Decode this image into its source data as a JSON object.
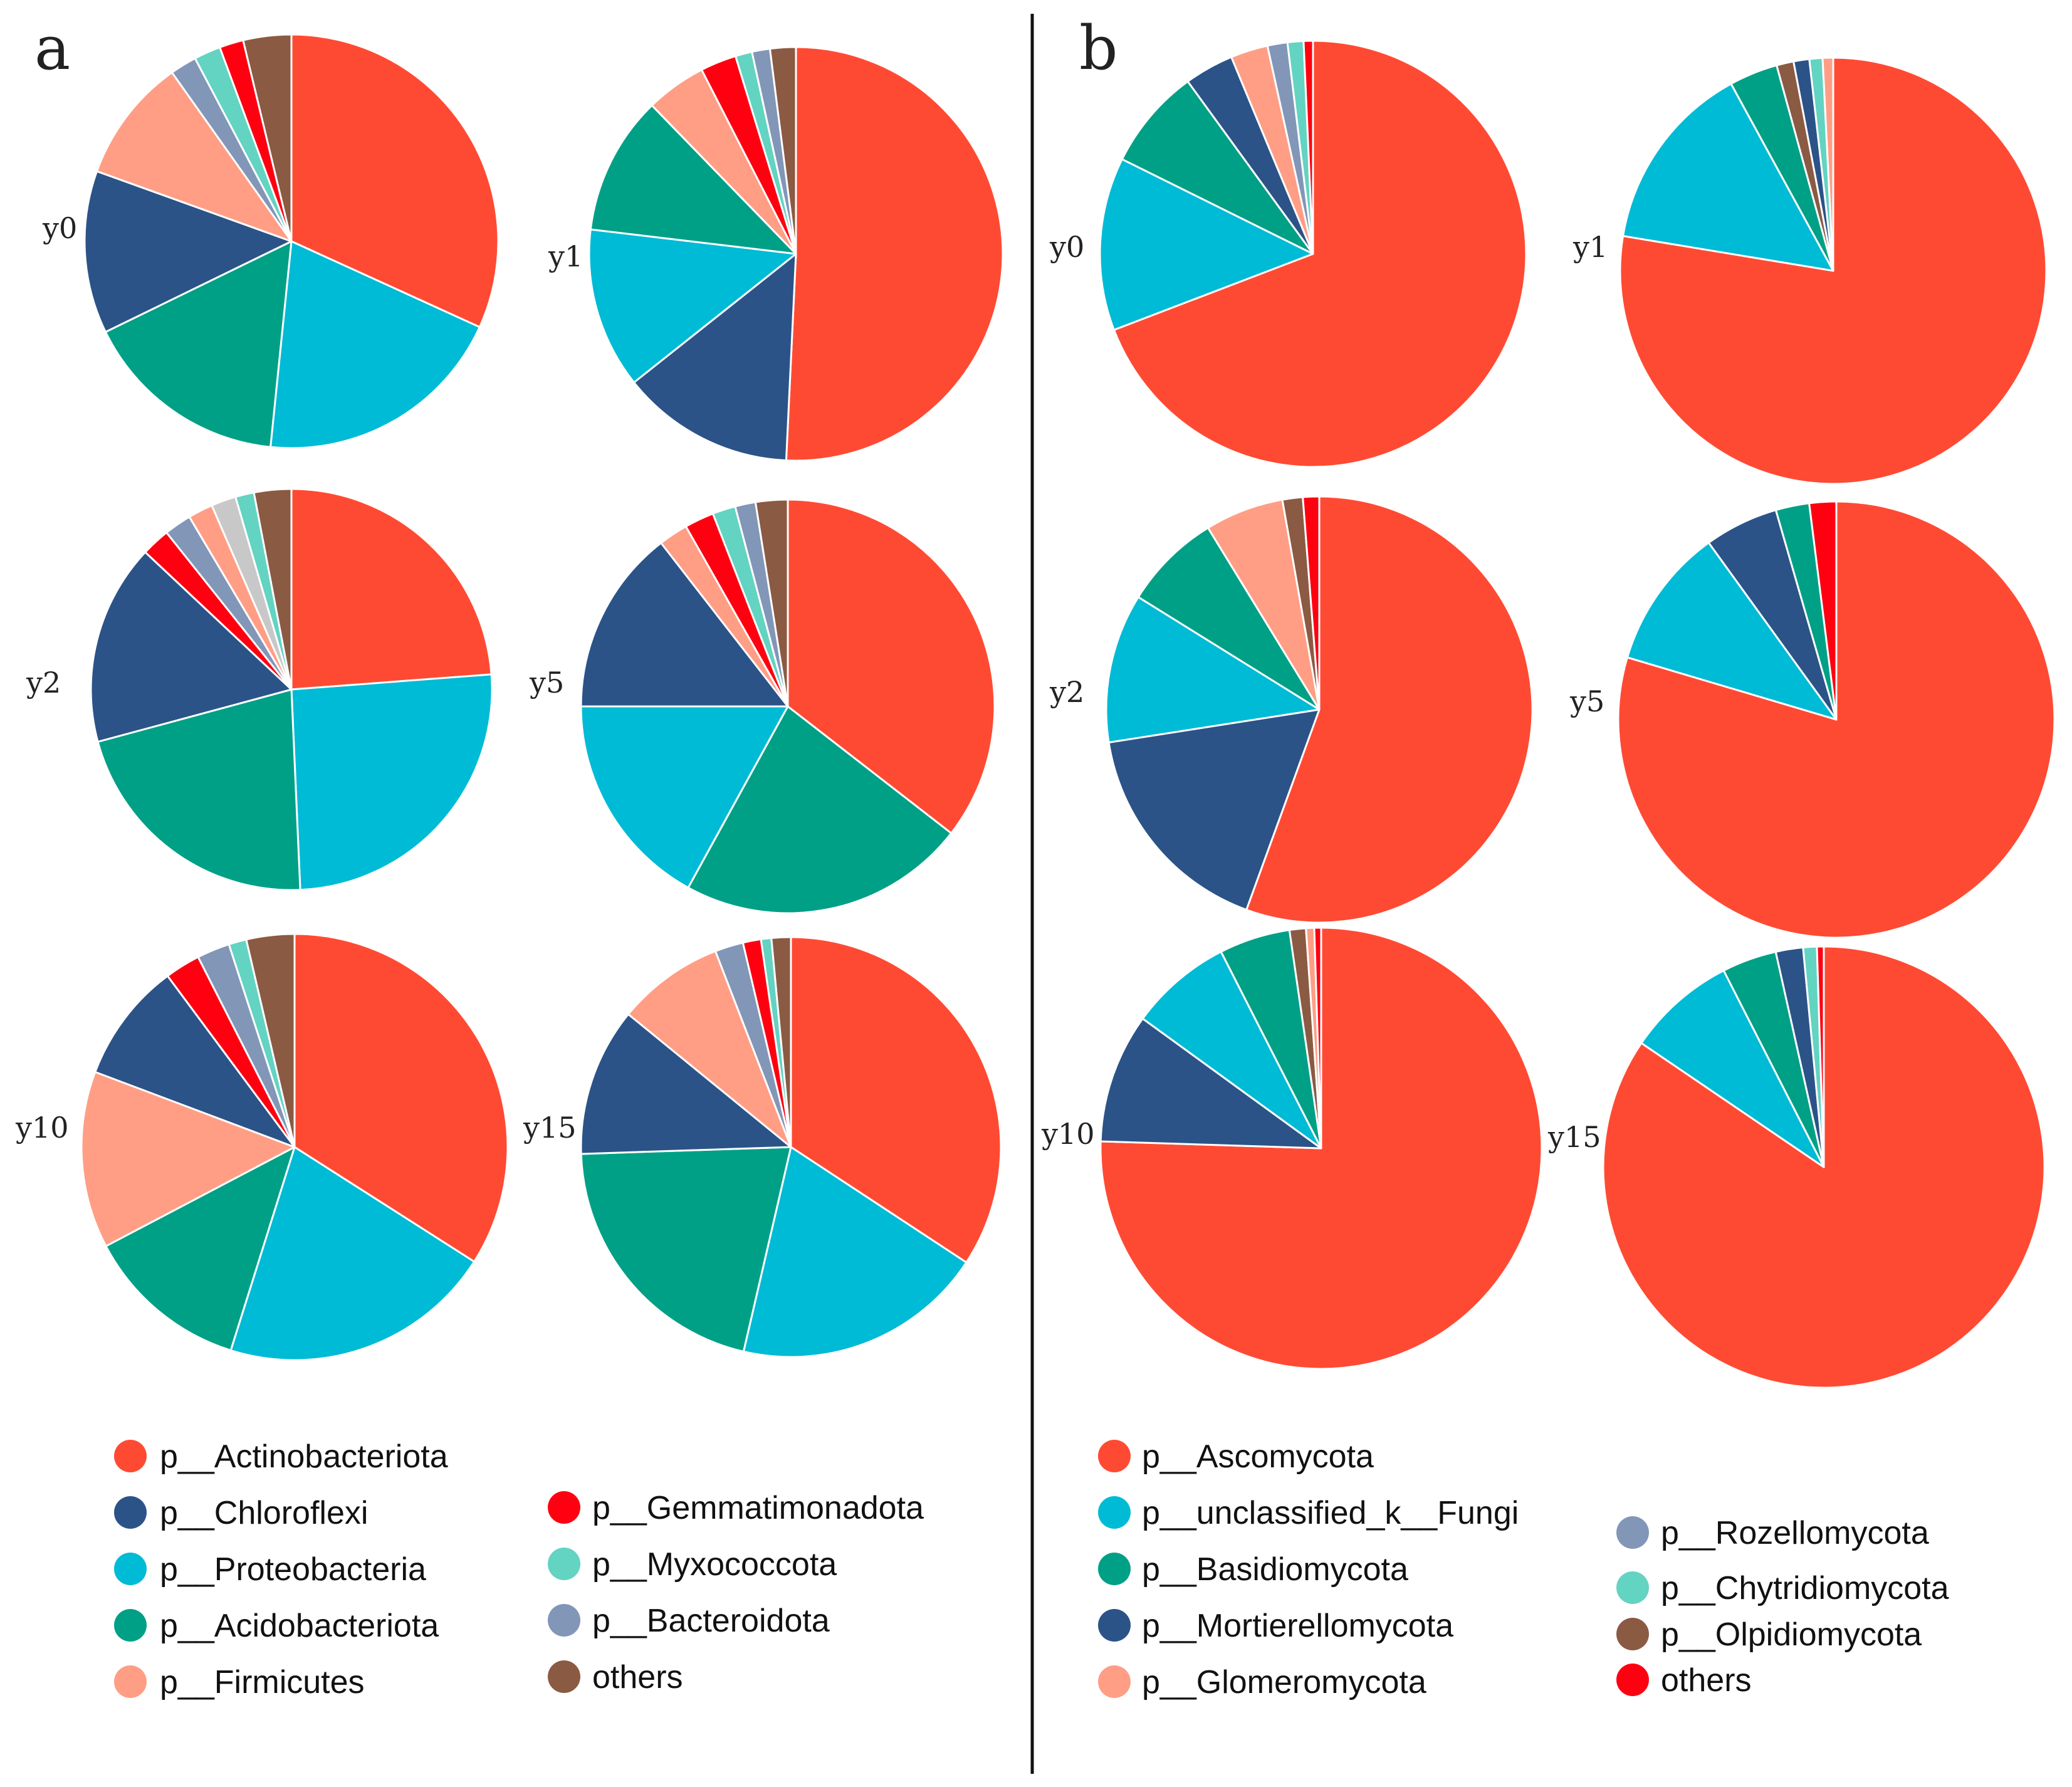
{
  "panels": [
    {
      "letter": "a",
      "colors": [
        "#FF4A33",
        "#2B5388",
        "#00BBD5",
        "#00A086",
        "#FF9E85",
        "#FF0011",
        "#63D3C2",
        "#8296B8",
        "#8B5A43",
        "#C8C8C8"
      ],
      "legend": [
        "p__Actinobacteriota",
        "p__Chloroflexi",
        "p__Proteobacteria",
        "p__Acidobacteriota",
        "p__Firmicutes",
        "p__Gemmatimonadota",
        "p__Myxococcota",
        "p__Bacteroidota",
        "others"
      ],
      "charts": [
        {
          "label": "y0",
          "slices": [
            {
              "c": 0,
              "pct": 30.5
            },
            {
              "c": 2,
              "pct": 19.0
            },
            {
              "c": 3,
              "pct": 15.5
            },
            {
              "c": 1,
              "pct": 12.2
            },
            {
              "c": 4,
              "pct": 9.3
            },
            {
              "c": 7,
              "pct": 2.0
            },
            {
              "c": 6,
              "pct": 2.0
            },
            {
              "c": 5,
              "pct": 1.8
            },
            {
              "c": 8,
              "pct": 3.6
            }
          ]
        },
        {
          "label": "y1",
          "slices": [
            {
              "c": 0,
              "pct": 50.5
            },
            {
              "c": 1,
              "pct": 13.5
            },
            {
              "c": 2,
              "pct": 12.5
            },
            {
              "c": 3,
              "pct": 10.8
            },
            {
              "c": 4,
              "pct": 4.7
            },
            {
              "c": 5,
              "pct": 2.8
            },
            {
              "c": 6,
              "pct": 1.3
            },
            {
              "c": 7,
              "pct": 1.4
            },
            {
              "c": 8,
              "pct": 2.0
            }
          ]
        },
        {
          "label": "y2",
          "slices": [
            {
              "c": 0,
              "pct": 23.8
            },
            {
              "c": 2,
              "pct": 25.5
            },
            {
              "c": 3,
              "pct": 21.5
            },
            {
              "c": 1,
              "pct": 16.2
            },
            {
              "c": 5,
              "pct": 2.3
            },
            {
              "c": 7,
              "pct": 2.2
            },
            {
              "c": 4,
              "pct": 2.0
            },
            {
              "c": 9,
              "pct": 2.0
            },
            {
              "c": 6,
              "pct": 1.5
            },
            {
              "c": 8,
              "pct": 3.0
            }
          ]
        },
        {
          "label": "y5",
          "slices": [
            {
              "c": 0,
              "pct": 35.5
            },
            {
              "c": 3,
              "pct": 22.5
            },
            {
              "c": 2,
              "pct": 17.0
            },
            {
              "c": 1,
              "pct": 14.5
            },
            {
              "c": 4,
              "pct": 2.3
            },
            {
              "c": 5,
              "pct": 2.3
            },
            {
              "c": 6,
              "pct": 1.8
            },
            {
              "c": 7,
              "pct": 1.6
            },
            {
              "c": 8,
              "pct": 2.5
            }
          ]
        },
        {
          "label": "y10",
          "slices": [
            {
              "c": 0,
              "pct": 35.5
            },
            {
              "c": 2,
              "pct": 21.7
            },
            {
              "c": 3,
              "pct": 13.0
            },
            {
              "c": 4,
              "pct": 14.0
            },
            {
              "c": 1,
              "pct": 9.5
            },
            {
              "c": 5,
              "pct": 2.8
            },
            {
              "c": 7,
              "pct": 2.6
            },
            {
              "c": 6,
              "pct": 1.4
            },
            {
              "c": 8,
              "pct": 3.8
            }
          ]
        },
        {
          "label": "y15",
          "slices": [
            {
              "c": 0,
              "pct": 34.5
            },
            {
              "c": 2,
              "pct": 19.5
            },
            {
              "c": 3,
              "pct": 21.0
            },
            {
              "c": 1,
              "pct": 11.5
            },
            {
              "c": 4,
              "pct": 8.3
            },
            {
              "c": 7,
              "pct": 2.2
            },
            {
              "c": 5,
              "pct": 1.4
            },
            {
              "c": 6,
              "pct": 0.8
            },
            {
              "c": 8,
              "pct": 1.5
            }
          ]
        }
      ]
    },
    {
      "letter": "b",
      "colors": [
        "#FF4A33",
        "#00BBD5",
        "#00A086",
        "#2B5388",
        "#FF9E85",
        "#8296B8",
        "#63D3C2",
        "#8B5A43",
        "#FF0011"
      ],
      "legend": [
        "p__Ascomycota",
        "p__unclassified_k__Fungi",
        "p__Basidiomycota",
        "p__Mortierellomycota",
        "p__Glomeromycota",
        "p__Rozellomycota",
        "p__Chytridiomycota",
        "p__Olpidiomycota",
        "others"
      ],
      "charts": [
        {
          "label": "y0",
          "slices": [
            {
              "c": 0,
              "pct": 68.5
            },
            {
              "c": 1,
              "pct": 13.0
            },
            {
              "c": 2,
              "pct": 7.6
            },
            {
              "c": 3,
              "pct": 3.7
            },
            {
              "c": 4,
              "pct": 2.8
            },
            {
              "c": 5,
              "pct": 1.5
            },
            {
              "c": 6,
              "pct": 1.2
            },
            {
              "c": 8,
              "pct": 0.7
            }
          ]
        },
        {
          "label": "y1",
          "slices": [
            {
              "c": 0,
              "pct": 78.0
            },
            {
              "c": 1,
              "pct": 14.5
            },
            {
              "c": 2,
              "pct": 3.7
            },
            {
              "c": 7,
              "pct": 1.3
            },
            {
              "c": 3,
              "pct": 1.2
            },
            {
              "c": 6,
              "pct": 1.0
            },
            {
              "c": 4,
              "pct": 0.8
            }
          ]
        },
        {
          "label": "y2",
          "slices": [
            {
              "c": 0,
              "pct": 54.0
            },
            {
              "c": 3,
              "pct": 16.5
            },
            {
              "c": 1,
              "pct": 11.0
            },
            {
              "c": 2,
              "pct": 7.2
            },
            {
              "c": 4,
              "pct": 5.8
            },
            {
              "c": 7,
              "pct": 1.5
            },
            {
              "c": 8,
              "pct": 1.2
            }
          ]
        },
        {
          "label": "y5",
          "slices": [
            {
              "c": 0,
              "pct": 80.0
            },
            {
              "c": 1,
              "pct": 10.5
            },
            {
              "c": 3,
              "pct": 5.5
            },
            {
              "c": 2,
              "pct": 2.5
            },
            {
              "c": 8,
              "pct": 2.0
            }
          ]
        },
        {
          "label": "y10",
          "slices": [
            {
              "c": 0,
              "pct": 75.5
            },
            {
              "c": 3,
              "pct": 9.5
            },
            {
              "c": 1,
              "pct": 7.5
            },
            {
              "c": 2,
              "pct": 5.2
            },
            {
              "c": 7,
              "pct": 1.2
            },
            {
              "c": 4,
              "pct": 0.6
            },
            {
              "c": 8,
              "pct": 0.5
            }
          ]
        },
        {
          "label": "y15",
          "slices": [
            {
              "c": 0,
              "pct": 84.5
            },
            {
              "c": 1,
              "pct": 8.0
            },
            {
              "c": 2,
              "pct": 4.0
            },
            {
              "c": 3,
              "pct": 2.0
            },
            {
              "c": 6,
              "pct": 1.0
            },
            {
              "c": 8,
              "pct": 0.5
            }
          ]
        }
      ]
    }
  ],
  "chart_data": [
    {
      "type": "pie",
      "title": "a",
      "charts": [
        {
          "label": "y0",
          "labels": [
            "p__Actinobacteriota",
            "p__Proteobacteria",
            "p__Acidobacteriota",
            "p__Chloroflexi",
            "p__Firmicutes",
            "p__Bacteroidota",
            "p__Myxococcota",
            "p__Gemmatimonadota",
            "others"
          ],
          "values": [
            30.5,
            19.0,
            15.5,
            12.2,
            9.3,
            2.0,
            2.0,
            1.8,
            3.6
          ]
        },
        {
          "label": "y1",
          "labels": [
            "p__Actinobacteriota",
            "p__Chloroflexi",
            "p__Proteobacteria",
            "p__Acidobacteriota",
            "p__Firmicutes",
            "p__Gemmatimonadota",
            "p__Myxococcota",
            "p__Bacteroidota",
            "others"
          ],
          "values": [
            50.5,
            13.5,
            12.5,
            10.8,
            4.7,
            2.8,
            1.3,
            1.4,
            2.0
          ]
        },
        {
          "label": "y2",
          "labels": [
            "p__Actinobacteriota",
            "p__Proteobacteria",
            "p__Acidobacteriota",
            "p__Chloroflexi",
            "p__Gemmatimonadota",
            "p__Bacteroidota",
            "p__Firmicutes",
            "(grey)",
            "p__Myxococcota",
            "others"
          ],
          "values": [
            23.8,
            25.5,
            21.5,
            16.2,
            2.3,
            2.2,
            2.0,
            2.0,
            1.5,
            3.0
          ]
        },
        {
          "label": "y5",
          "labels": [
            "p__Actinobacteriota",
            "p__Acidobacteriota",
            "p__Proteobacteria",
            "p__Chloroflexi",
            "p__Firmicutes",
            "p__Gemmatimonadota",
            "p__Myxococcota",
            "p__Bacteroidota",
            "others"
          ],
          "values": [
            35.5,
            22.5,
            17.0,
            14.5,
            2.3,
            2.3,
            1.8,
            1.6,
            2.5
          ]
        },
        {
          "label": "y10",
          "labels": [
            "p__Actinobacteriota",
            "p__Proteobacteria",
            "p__Acidobacteriota",
            "p__Firmicutes",
            "p__Chloroflexi",
            "p__Gemmatimonadota",
            "p__Bacteroidota",
            "p__Myxococcota",
            "others"
          ],
          "values": [
            35.5,
            21.7,
            13.0,
            14.0,
            9.5,
            2.8,
            2.6,
            1.4,
            3.8
          ]
        },
        {
          "label": "y15",
          "labels": [
            "p__Actinobacteriota",
            "p__Proteobacteria",
            "p__Acidobacteriota",
            "p__Chloroflexi",
            "p__Firmicutes",
            "p__Bacteroidota",
            "p__Gemmatimonadota",
            "p__Myxococcota",
            "others"
          ],
          "values": [
            34.5,
            19.5,
            21.0,
            11.5,
            8.3,
            2.2,
            1.4,
            0.8,
            1.5
          ]
        }
      ]
    },
    {
      "type": "pie",
      "title": "b",
      "charts": [
        {
          "label": "y0",
          "labels": [
            "p__Ascomycota",
            "p__unclassified_k__Fungi",
            "p__Basidiomycota",
            "p__Mortierellomycota",
            "p__Glomeromycota",
            "p__Rozellomycota",
            "p__Chytridiomycota",
            "others"
          ],
          "values": [
            68.5,
            13.0,
            7.6,
            3.7,
            2.8,
            1.5,
            1.2,
            0.7
          ]
        },
        {
          "label": "y1",
          "labels": [
            "p__Ascomycota",
            "p__unclassified_k__Fungi",
            "p__Basidiomycota",
            "p__Olpidiomycota",
            "p__Mortierellomycota",
            "p__Chytridiomycota",
            "p__Glomeromycota"
          ],
          "values": [
            78.0,
            14.5,
            3.7,
            1.3,
            1.2,
            1.0,
            0.8
          ]
        },
        {
          "label": "y2",
          "labels": [
            "p__Ascomycota",
            "p__Mortierellomycota",
            "p__unclassified_k__Fungi",
            "p__Basidiomycota",
            "p__Glomeromycota",
            "p__Olpidiomycota",
            "others"
          ],
          "values": [
            54.0,
            16.5,
            11.0,
            7.2,
            5.8,
            1.5,
            1.2
          ]
        },
        {
          "label": "y5",
          "labels": [
            "p__Ascomycota",
            "p__unclassified_k__Fungi",
            "p__Mortierellomycota",
            "p__Basidiomycota",
            "others"
          ],
          "values": [
            80.0,
            10.5,
            5.5,
            2.5,
            2.0
          ]
        },
        {
          "label": "y10",
          "labels": [
            "p__Ascomycota",
            "p__Mortierellomycota",
            "p__unclassified_k__Fungi",
            "p__Basidiomycota",
            "p__Olpidiomycota",
            "p__Glomeromycota",
            "others"
          ],
          "values": [
            75.5,
            9.5,
            7.5,
            5.2,
            1.2,
            0.6,
            0.5
          ]
        },
        {
          "label": "y15",
          "labels": [
            "p__Ascomycota",
            "p__unclassified_k__Fungi",
            "p__Basidiomycota",
            "p__Mortierellomycota",
            "p__Chytridiomycota",
            "others"
          ],
          "values": [
            84.5,
            8.0,
            4.0,
            2.0,
            1.0,
            0.5
          ]
        }
      ]
    }
  ]
}
